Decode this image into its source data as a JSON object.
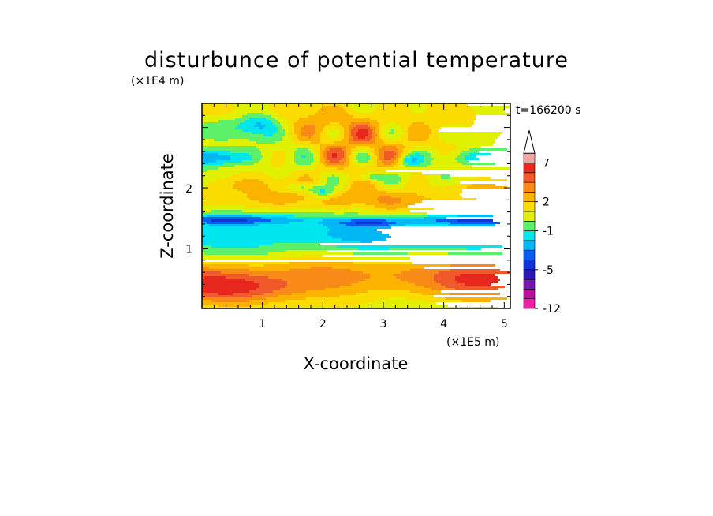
{
  "chart_data": {
    "type": "heatmap",
    "title": "disturbunce of potential temperature",
    "xlabel": "X-coordinate",
    "ylabel": "Z-coordinate",
    "x_unit": "(×1E5 m)",
    "y_unit": "(×1E4 m)",
    "time_label": "t=166200 s",
    "xlim": [
      0,
      5.1
    ],
    "ylim": [
      0,
      3.4
    ],
    "x_ticks": [
      1,
      2,
      3,
      4,
      5
    ],
    "y_ticks": [
      1,
      2
    ],
    "colorbar": {
      "levels": [
        -12,
        -10,
        -8,
        -6,
        -5,
        -4,
        -3,
        -2,
        -1,
        0,
        1,
        2,
        3,
        4,
        5,
        7,
        9,
        11
      ],
      "colors": [
        "#ee1fa6",
        "#b8139e",
        "#7a16b0",
        "#2a1bb4",
        "#1034d8",
        "#0a5cf0",
        "#00b8f4",
        "#00e6ee",
        "#5df06a",
        "#dff000",
        "#fbdc00",
        "#fbb300",
        "#f88a18",
        "#f0592a",
        "#e8271e",
        "#f4a6a6"
      ],
      "tick_labels": [
        "-12",
        "-5",
        "-1",
        "2",
        "7"
      ],
      "extend": "max"
    }
  }
}
